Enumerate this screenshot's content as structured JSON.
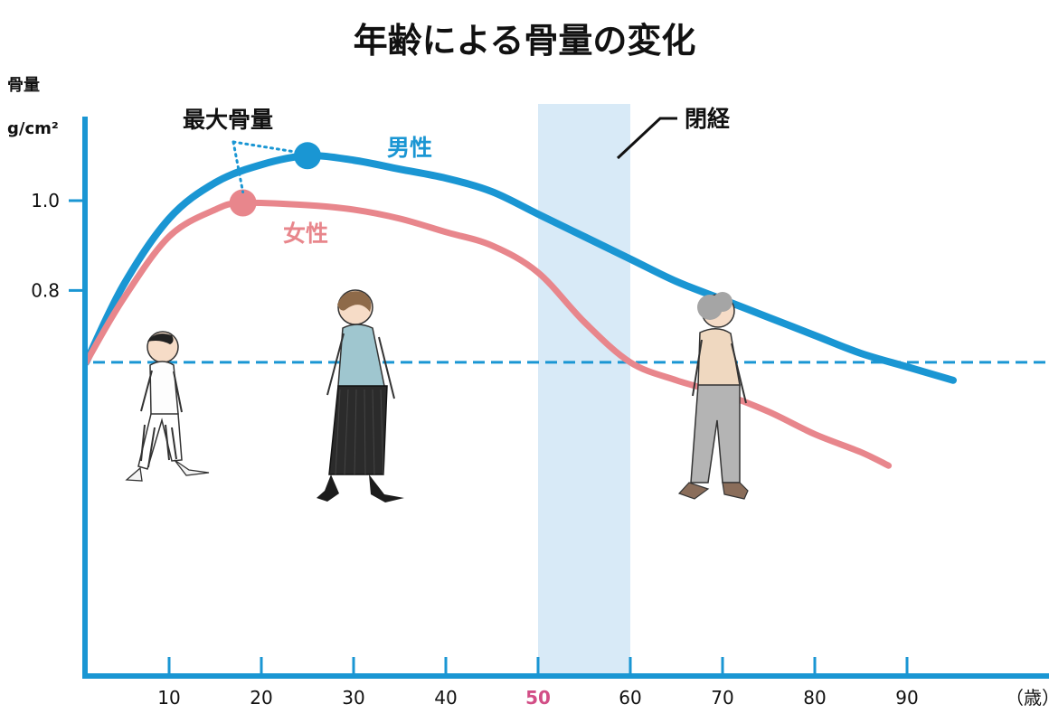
{
  "chart_data": {
    "type": "line",
    "title": "年齢による骨量の変化",
    "ylabel": "骨量",
    "yunit": "g/cm²",
    "xunit": "（歳）",
    "x_ticks": [
      10,
      20,
      30,
      40,
      50,
      60,
      70,
      80,
      90
    ],
    "y_ticks": [
      0.8,
      1.0
    ],
    "xlim": [
      0,
      110
    ],
    "ylim": [
      0,
      1.2
    ],
    "highlight_tick": 50,
    "highlight_range": [
      50,
      60
    ],
    "highlight_label": "閉経",
    "threshold": 0.64,
    "peak_label": "最大骨量",
    "series": [
      {
        "name": "男性",
        "color": "#1a96d3",
        "x": [
          1,
          5,
          10,
          15,
          20,
          25,
          30,
          35,
          40,
          45,
          50,
          55,
          60,
          65,
          70,
          75,
          80,
          85,
          90,
          95
        ],
        "y": [
          0.64,
          0.81,
          0.96,
          1.04,
          1.08,
          1.1,
          1.09,
          1.07,
          1.05,
          1.02,
          0.97,
          0.92,
          0.87,
          0.82,
          0.78,
          0.74,
          0.7,
          0.66,
          0.63,
          0.6
        ],
        "peak": {
          "x": 25,
          "y": 1.1
        }
      },
      {
        "name": "女性",
        "color": "#e8868c",
        "x": [
          1,
          5,
          10,
          15,
          18,
          25,
          30,
          35,
          40,
          45,
          50,
          55,
          60,
          65,
          70,
          75,
          80,
          85,
          88
        ],
        "y": [
          0.64,
          0.78,
          0.92,
          0.98,
          0.995,
          0.99,
          0.98,
          0.96,
          0.93,
          0.9,
          0.84,
          0.73,
          0.64,
          0.6,
          0.57,
          0.53,
          0.48,
          0.44,
          0.41
        ],
        "peak": {
          "x": 18,
          "y": 0.995
        }
      }
    ],
    "colors": {
      "axis": "#1a96d3",
      "threshold": "#1a96d3",
      "band": "#d8eaf7",
      "highlight_tick": "#d24e86"
    }
  }
}
